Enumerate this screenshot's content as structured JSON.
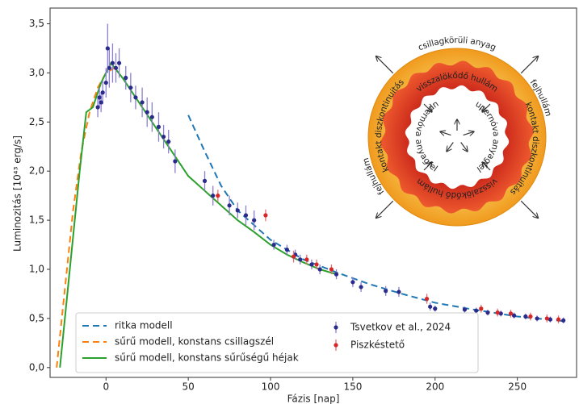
{
  "chart_data": {
    "type": "line",
    "xlabel": "Fázis [nap]",
    "ylabel": "Luminozitás [10⁴³ erg/s]",
    "xlim": [
      -34,
      286
    ],
    "ylim": [
      -0.1,
      3.66
    ],
    "xticks": [
      0,
      50,
      100,
      150,
      200,
      250
    ],
    "yticks": [
      {
        "value": 0,
        "label": "0,0"
      },
      {
        "value": 0.5,
        "label": "0,5"
      },
      {
        "value": 1,
        "label": "1,0"
      },
      {
        "value": 1.5,
        "label": "1,5"
      },
      {
        "value": 2,
        "label": "2,0"
      },
      {
        "value": 2.5,
        "label": "2,5"
      },
      {
        "value": 3,
        "label": "3,0"
      },
      {
        "value": 3.5,
        "label": "3,5"
      }
    ],
    "legend": "lower left",
    "series": [
      {
        "name": "ritka modell",
        "color": "#1f77b4",
        "style": "dashed",
        "x": [
          50,
          60,
          70,
          80,
          100,
          120,
          140,
          160,
          180,
          200,
          220,
          250,
          280
        ],
        "values": [
          2.57,
          2.2,
          1.85,
          1.6,
          1.3,
          1.1,
          0.97,
          0.85,
          0.75,
          0.66,
          0.6,
          0.52,
          0.47
        ]
      },
      {
        "name": "sűrű modell, konstans csillagszél",
        "color": "#ff7f0e",
        "style": "dashed",
        "x": [
          -30,
          -25,
          -20,
          -15,
          -10,
          -5,
          0,
          5
        ],
        "values": [
          0,
          0.8,
          1.6,
          2.2,
          2.6,
          2.85,
          3.0,
          3.05
        ]
      },
      {
        "name": "sűrű modell, konstans sűrűségű héjak",
        "color": "#2ca02c",
        "style": "solid",
        "x": [
          -28,
          -22,
          -16,
          -12,
          -8,
          -3,
          3,
          10,
          20,
          30,
          40,
          50,
          60,
          70,
          80,
          90,
          100,
          110,
          120,
          130,
          140
        ],
        "values": [
          0,
          1.0,
          2.0,
          2.6,
          2.65,
          2.9,
          3.1,
          2.95,
          2.7,
          2.45,
          2.2,
          1.95,
          1.8,
          1.65,
          1.5,
          1.38,
          1.25,
          1.15,
          1.07,
          1.0,
          0.95
        ]
      },
      {
        "name": "Tsvetkov et al., 2024",
        "color": "#2b2b8c",
        "style": "errorbar",
        "errcolor": "#8a7fd0",
        "x": [
          -5,
          -4,
          -3,
          -2,
          0,
          1,
          2,
          4,
          6,
          8,
          12,
          15,
          18,
          22,
          25,
          28,
          32,
          35,
          38,
          42,
          60,
          65,
          75,
          80,
          85,
          90,
          102,
          110,
          115,
          118,
          125,
          130,
          140,
          150,
          155,
          170,
          178,
          197,
          200,
          218,
          225,
          232,
          240,
          248,
          255,
          262,
          270,
          278
        ],
        "values": [
          2.65,
          2.75,
          2.7,
          2.8,
          2.9,
          3.25,
          3.05,
          3.1,
          3.05,
          3.1,
          2.95,
          2.85,
          2.75,
          2.7,
          2.6,
          2.55,
          2.45,
          2.35,
          2.3,
          2.1,
          1.9,
          1.75,
          1.65,
          1.6,
          1.55,
          1.5,
          1.25,
          1.2,
          1.15,
          1.1,
          1.05,
          1.0,
          0.95,
          0.87,
          0.82,
          0.78,
          0.77,
          0.62,
          0.6,
          0.59,
          0.58,
          0.56,
          0.55,
          0.53,
          0.52,
          0.5,
          0.49,
          0.48
        ],
        "errors": [
          0.1,
          0.1,
          0.1,
          0.12,
          0.15,
          0.25,
          0.2,
          0.2,
          0.15,
          0.15,
          0.12,
          0.15,
          0.12,
          0.15,
          0.15,
          0.15,
          0.15,
          0.12,
          0.12,
          0.12,
          0.1,
          0.1,
          0.1,
          0.08,
          0.1,
          0.1,
          0.05,
          0.05,
          0.05,
          0.05,
          0.05,
          0.05,
          0.05,
          0.05,
          0.05,
          0.05,
          0.05,
          0.04,
          0.03,
          0.03,
          0.03,
          0.03,
          0.03,
          0.03,
          0.03,
          0.03,
          0.03,
          0.03
        ]
      },
      {
        "name": "Piszkéstető",
        "color": "#d62728",
        "style": "errorbar",
        "errcolor": "#e87070",
        "x": [
          68,
          97,
          114,
          122,
          128,
          137,
          195,
          228,
          238,
          246,
          258,
          268,
          275
        ],
        "values": [
          1.75,
          1.55,
          1.13,
          1.1,
          1.05,
          1.0,
          0.7,
          0.6,
          0.56,
          0.55,
          0.52,
          0.5,
          0.49
        ],
        "errors": [
          0.06,
          0.06,
          0.06,
          0.05,
          0.05,
          0.05,
          0.05,
          0.04,
          0.04,
          0.04,
          0.04,
          0.04,
          0.04
        ]
      }
    ]
  },
  "diagram": {
    "labels": [
      "csillagkörüli anyag",
      "fejhullám",
      "fejhullám",
      "kontakt diszkontinuitás",
      "kontakt diszkontinuitás",
      "visszalökődő hullám",
      "visszalökődő hullám",
      "szupernóva anyagfelhő",
      "szupernóva anyagfelhő"
    ]
  }
}
